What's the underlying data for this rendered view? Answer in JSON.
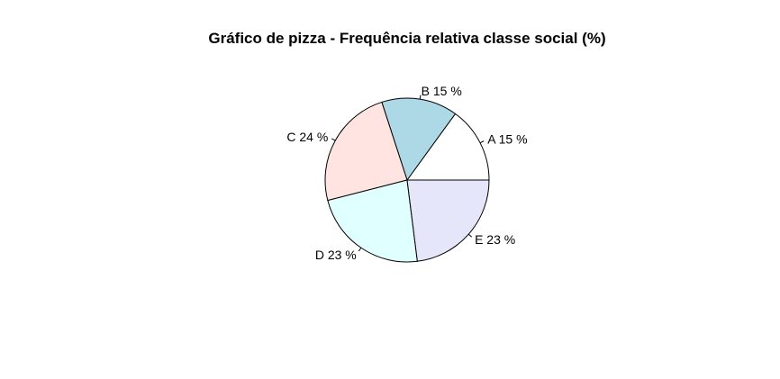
{
  "chart_data": {
    "type": "pie",
    "title": "Gráfico de pizza - Frequência relativa classe social (%)",
    "slices": [
      {
        "category": "A",
        "value": 15,
        "label": "A 15 %",
        "color": "#ffffff"
      },
      {
        "category": "B",
        "value": 15,
        "label": "B 15 %",
        "color": "#add8e6"
      },
      {
        "category": "C",
        "value": 24,
        "label": "C 24 %",
        "color": "#ffe4e1"
      },
      {
        "category": "D",
        "value": 23,
        "label": "D 23 %",
        "color": "#e0ffff"
      },
      {
        "category": "E",
        "value": 23,
        "label": "E 23 %",
        "color": "#e6e6fa"
      }
    ],
    "start_angle_degrees": 0,
    "direction": "counterclockwise",
    "border_color": "#000000"
  }
}
